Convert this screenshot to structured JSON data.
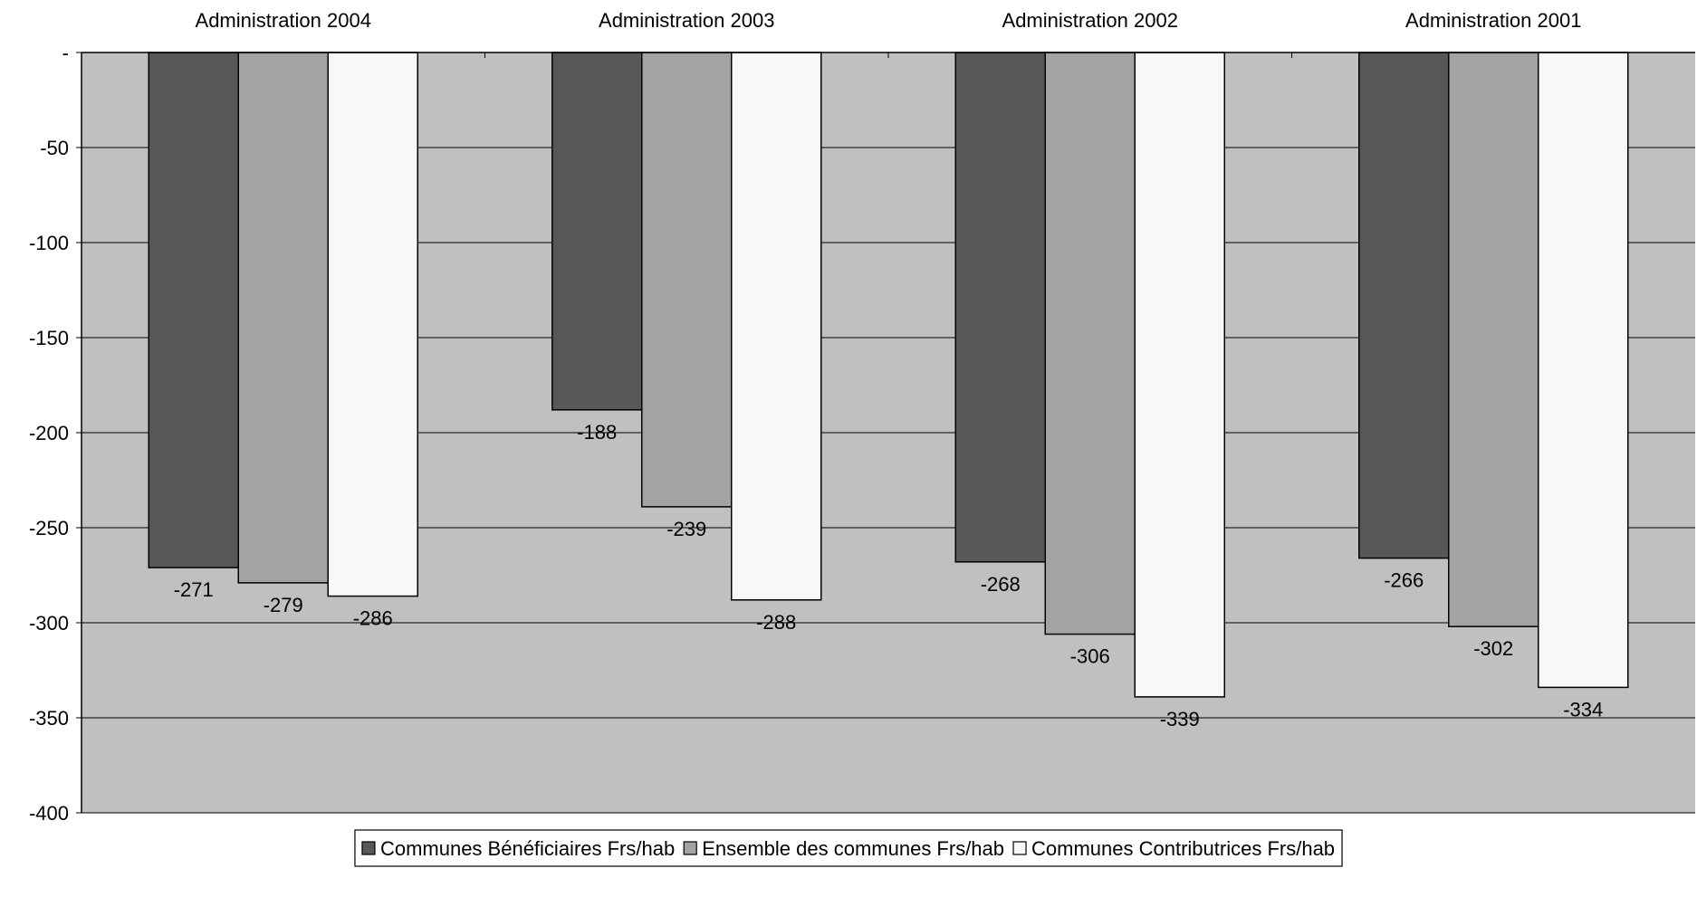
{
  "chart_data": {
    "type": "bar",
    "title": "",
    "xlabel": "",
    "ylabel": "",
    "categories": [
      "Administration 2004",
      "Administration 2003",
      "Administration 2002",
      "Administration 2001"
    ],
    "series": [
      {
        "name": "Communes Bénéficiaires Frs/hab",
        "color": "#575757",
        "values": [
          -271,
          -188,
          -268,
          -266
        ]
      },
      {
        "name": "Ensemble des communes Frs/hab",
        "color": "#a3a3a3",
        "values": [
          -279,
          -239,
          -306,
          -302
        ]
      },
      {
        "name": "Communes Contributrices Frs/hab",
        "color": "#f8f8f8",
        "values": [
          -286,
          -288,
          -339,
          -334
        ]
      }
    ],
    "ylim": [
      -400,
      0
    ],
    "yticks": [
      0,
      -50,
      -100,
      -150,
      -200,
      -250,
      -300,
      -350,
      -400
    ],
    "ytick_labels": [
      "-",
      "-50",
      "-100",
      "-150",
      "-200",
      "-250",
      "-300",
      "-350",
      "-400"
    ],
    "category_axis_position": "top",
    "grid": true,
    "plot_background": "#c0c0c0",
    "legend_position": "bottom"
  }
}
